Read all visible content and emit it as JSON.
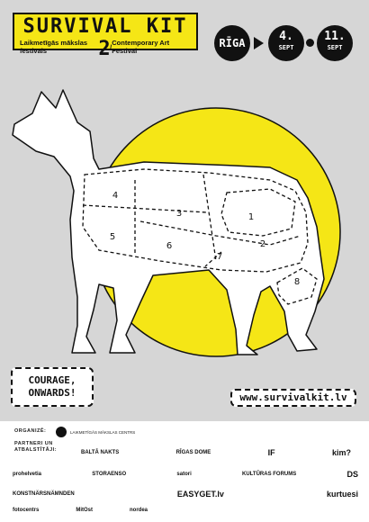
{
  "header": {
    "title": "SURVIVAL KIT 2",
    "subtitle_lv": "Laikmetīgās mākslas festivāls",
    "divider": "/",
    "subtitle_en": "Contemporary Art Festival"
  },
  "dates": {
    "city": "RĪGA",
    "start_day": "4.",
    "start_month": "SEPT",
    "end_day": "11.",
    "end_month": "SEPT"
  },
  "colors": {
    "accent_yellow": "#f5e616",
    "ink": "#111111",
    "background": "#d6d6d6"
  },
  "map_numbers": [
    "1",
    "2",
    "3",
    "4",
    "5",
    "6",
    "7",
    "8"
  ],
  "slogan": {
    "line1": "COURAGE,",
    "line2": "ONWARDS!"
  },
  "website": "www.survivalkit.lv",
  "sponsors": {
    "organizer_label": "ORGANIZĒ:",
    "organizer_name": "LAIKMETĪGĀS MĀKSLAS CENTRS",
    "partners_label": "PARTNERI UN ATBALSTĪTĀJI:",
    "row1": [
      "BALTĀ NAKTS",
      "RĪGAS DOME",
      "IF",
      "kim?"
    ],
    "row2": [
      "prohelvetia",
      "STORAENSO",
      "satori",
      "KULTŪRAS FORUMS",
      "DS"
    ],
    "row3": [
      "KONSTNÄRSNÄMNDEN",
      "EASYGET.lv",
      "kurtuesi"
    ],
    "row4": [
      "fotocentrs",
      "MitOst",
      "nordea"
    ]
  }
}
